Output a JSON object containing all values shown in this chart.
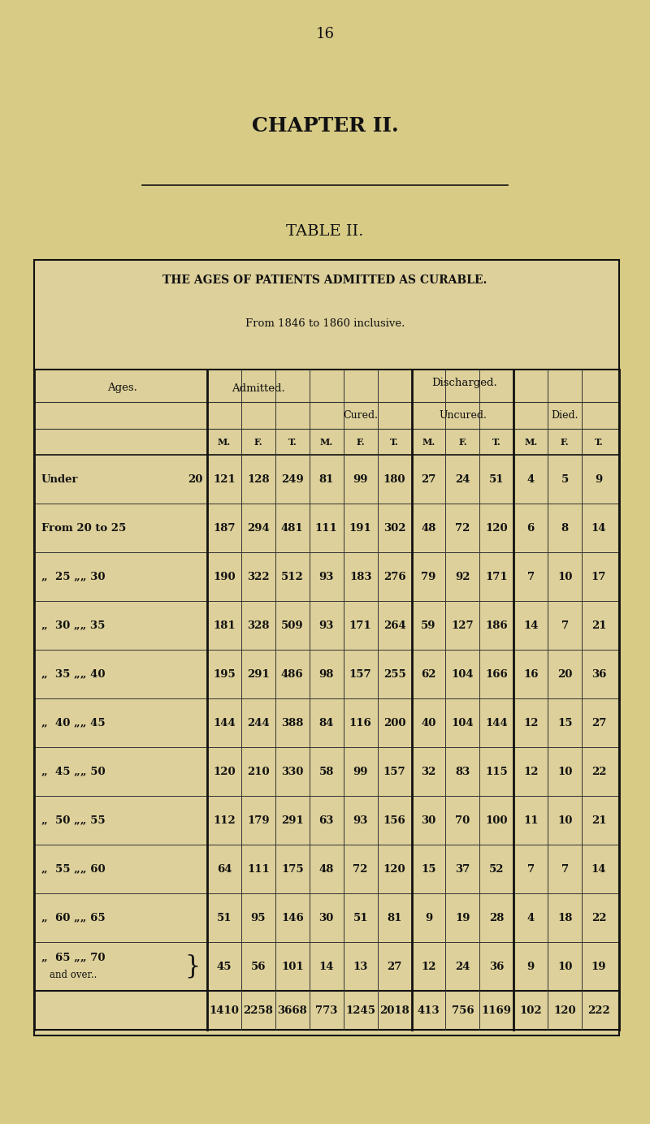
{
  "page_number": "16",
  "chapter_title": "CHAPTER II.",
  "table_title": "TABLE II.",
  "table_subtitle": "THE AGES OF PATIENTS ADMITTED AS CURABLE.",
  "table_subsubtitle": "From 1846 to 1860 inclusive.",
  "bg_color": "#d8cb86",
  "table_bg": "#ddd09a",
  "header_discharged": "Discharged.",
  "header_cured": "Cured.",
  "header_uncured": "Uncured.",
  "header_died": "Died.",
  "header_ages": "Ages.",
  "header_admitted": "Admitted.",
  "col_headers": [
    "M.",
    "F.",
    "T.",
    "M.",
    "F.",
    "T.",
    "M.",
    "F.",
    "T.",
    "M.",
    "F.",
    "T."
  ],
  "data": [
    [
      121,
      128,
      249,
      81,
      99,
      180,
      27,
      24,
      51,
      4,
      5,
      9
    ],
    [
      187,
      294,
      481,
      111,
      191,
      302,
      48,
      72,
      120,
      6,
      8,
      14
    ],
    [
      190,
      322,
      512,
      93,
      183,
      276,
      79,
      92,
      171,
      7,
      10,
      17
    ],
    [
      181,
      328,
      509,
      93,
      171,
      264,
      59,
      127,
      186,
      14,
      7,
      21
    ],
    [
      195,
      291,
      486,
      98,
      157,
      255,
      62,
      104,
      166,
      16,
      20,
      36
    ],
    [
      144,
      244,
      388,
      84,
      116,
      200,
      40,
      104,
      144,
      12,
      15,
      27
    ],
    [
      120,
      210,
      330,
      58,
      99,
      157,
      32,
      83,
      115,
      12,
      10,
      22
    ],
    [
      112,
      179,
      291,
      63,
      93,
      156,
      30,
      70,
      100,
      11,
      10,
      21
    ],
    [
      64,
      111,
      175,
      48,
      72,
      120,
      15,
      37,
      52,
      7,
      7,
      14
    ],
    [
      51,
      95,
      146,
      30,
      51,
      81,
      9,
      19,
      28,
      4,
      18,
      22
    ],
    [
      45,
      56,
      101,
      14,
      13,
      27,
      12,
      24,
      36,
      9,
      10,
      19
    ]
  ],
  "totals": [
    1410,
    2258,
    3668,
    773,
    1245,
    2018,
    413,
    756,
    1169,
    102,
    120,
    222
  ],
  "font_color": "#111111",
  "line_color": "#333333",
  "thick_line_color": "#111111"
}
